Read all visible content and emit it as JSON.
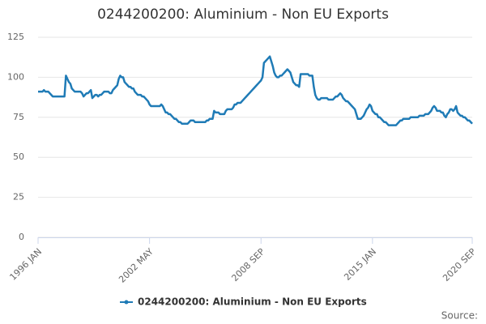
{
  "chart_data": {
    "type": "line",
    "title": "0244200200: Aluminium - Non EU Exports",
    "source": "Source:",
    "categories": [
      "1996 JAN",
      null,
      null,
      null,
      null,
      null,
      null,
      null,
      null,
      null,
      null,
      null,
      null,
      null,
      null,
      null,
      null,
      null,
      null,
      null,
      null,
      null,
      null,
      null,
      null,
      null,
      null,
      null,
      null,
      null,
      null,
      null,
      null,
      null,
      null,
      null,
      null,
      null,
      null,
      null,
      null,
      null,
      null,
      null,
      null,
      null,
      null,
      null,
      null,
      null,
      null,
      null,
      null,
      null,
      null,
      null,
      null,
      null,
      null,
      null,
      null,
      null,
      null,
      null,
      null,
      null,
      null,
      null,
      null,
      null,
      null,
      null,
      null,
      null,
      null,
      null,
      "2002 MAY",
      null,
      null,
      null,
      null,
      null,
      null,
      null,
      null,
      null,
      null,
      null,
      null,
      null,
      null,
      null,
      null,
      null,
      null,
      null,
      null,
      null,
      null,
      null,
      null,
      null,
      null,
      null,
      null,
      null,
      null,
      null,
      null,
      null,
      null,
      null,
      null,
      null,
      null,
      null,
      null,
      null,
      null,
      null,
      null,
      null,
      null,
      null,
      null,
      null,
      null,
      null,
      null,
      null,
      null,
      null,
      null,
      null,
      null,
      null,
      null,
      null,
      null,
      null,
      null,
      null,
      null,
      null,
      null,
      null,
      null,
      null,
      null,
      null,
      null,
      null,
      "2008 SEP",
      null,
      null,
      null,
      null,
      null,
      null,
      null,
      null,
      null,
      null,
      null,
      null,
      null,
      null,
      null,
      null,
      null,
      null,
      null,
      null,
      null,
      null,
      null,
      null,
      null,
      null,
      null,
      null,
      null,
      null,
      null,
      null,
      null,
      null,
      null,
      null,
      null,
      null,
      null,
      null,
      null,
      null,
      null,
      null,
      null,
      null,
      null,
      null,
      null,
      null,
      null,
      null,
      null,
      null,
      null,
      null,
      null,
      null,
      null,
      null,
      null,
      null,
      null,
      null,
      null,
      null,
      null,
      null,
      null,
      null,
      null,
      null,
      null,
      null,
      null,
      "2015 JAN",
      null,
      null,
      null,
      null,
      null,
      null,
      null,
      null,
      null,
      null,
      null,
      null,
      null,
      null,
      null,
      null,
      null,
      null,
      null,
      null,
      null,
      null,
      null,
      null,
      null,
      null,
      null,
      null,
      null,
      null,
      null,
      null,
      null,
      null,
      null,
      null,
      null,
      null,
      null,
      null,
      null,
      null,
      null,
      null,
      null,
      null,
      null,
      null,
      null,
      null,
      null,
      null,
      null,
      null,
      null,
      null,
      null,
      null,
      null,
      null,
      null,
      null,
      null,
      null,
      null,
      null,
      null,
      "2020 SEP"
    ],
    "series": [
      {
        "name": "0244200200: Aluminium - Non EU Exports",
        "color": "#1f7bb6",
        "values": [
          91,
          91,
          91,
          91,
          92,
          91,
          91,
          91,
          90,
          89,
          88,
          88,
          88,
          88,
          88,
          88,
          88,
          88,
          88,
          101,
          99,
          97,
          96,
          93,
          92,
          91,
          91,
          91,
          91,
          91,
          90,
          88,
          89,
          90,
          90,
          91,
          92,
          87,
          88,
          89,
          89,
          88,
          89,
          89,
          90,
          91,
          91,
          91,
          91,
          90,
          90,
          92,
          93,
          94,
          95,
          99,
          101,
          100,
          100,
          97,
          96,
          95,
          94,
          94,
          93,
          93,
          91,
          90,
          89,
          89,
          89,
          88,
          88,
          87,
          86,
          85,
          83,
          82,
          82,
          82,
          82,
          82,
          82,
          82,
          83,
          82,
          80,
          78,
          78,
          77,
          77,
          76,
          75,
          74,
          74,
          73,
          72,
          72,
          71,
          71,
          71,
          71,
          71,
          72,
          73,
          73,
          73,
          72,
          72,
          72,
          72,
          72,
          72,
          72,
          72,
          73,
          73,
          74,
          74,
          74,
          79,
          78,
          78,
          78,
          77,
          77,
          77,
          77,
          79,
          80,
          80,
          80,
          80,
          81,
          83,
          83,
          84,
          84,
          84,
          85,
          86,
          87,
          88,
          89,
          90,
          91,
          92,
          93,
          94,
          95,
          96,
          97,
          98,
          100,
          109,
          110,
          111,
          112,
          113,
          110,
          107,
          103,
          101,
          100,
          100,
          101,
          101,
          102,
          103,
          104,
          105,
          104,
          103,
          100,
          97,
          96,
          95,
          95,
          94,
          102,
          102,
          102,
          102,
          102,
          102,
          101,
          101,
          101,
          94,
          89,
          87,
          86,
          86,
          87,
          87,
          87,
          87,
          87,
          86,
          86,
          86,
          86,
          87,
          88,
          88,
          89,
          90,
          89,
          87,
          86,
          85,
          85,
          84,
          83,
          82,
          81,
          80,
          77,
          74,
          74,
          74,
          75,
          76,
          78,
          80,
          81,
          83,
          82,
          79,
          78,
          77,
          77,
          75,
          75,
          74,
          73,
          72,
          72,
          71,
          70,
          70,
          70,
          70,
          70,
          70,
          71,
          72,
          73,
          73,
          74,
          74,
          74,
          74,
          74,
          75,
          75,
          75,
          75,
          75,
          75,
          76,
          76,
          76,
          76,
          77,
          77,
          77,
          78,
          79,
          81,
          82,
          81,
          79,
          79,
          79,
          78,
          78,
          76,
          75,
          77,
          78,
          80,
          80,
          79,
          80,
          82,
          78,
          77,
          76,
          76,
          75,
          75,
          74,
          73,
          73,
          72,
          71
        ]
      }
    ],
    "ylim": [
      0,
      125
    ],
    "yticks": [
      0,
      25,
      50,
      75,
      100,
      125
    ],
    "grid": true
  }
}
